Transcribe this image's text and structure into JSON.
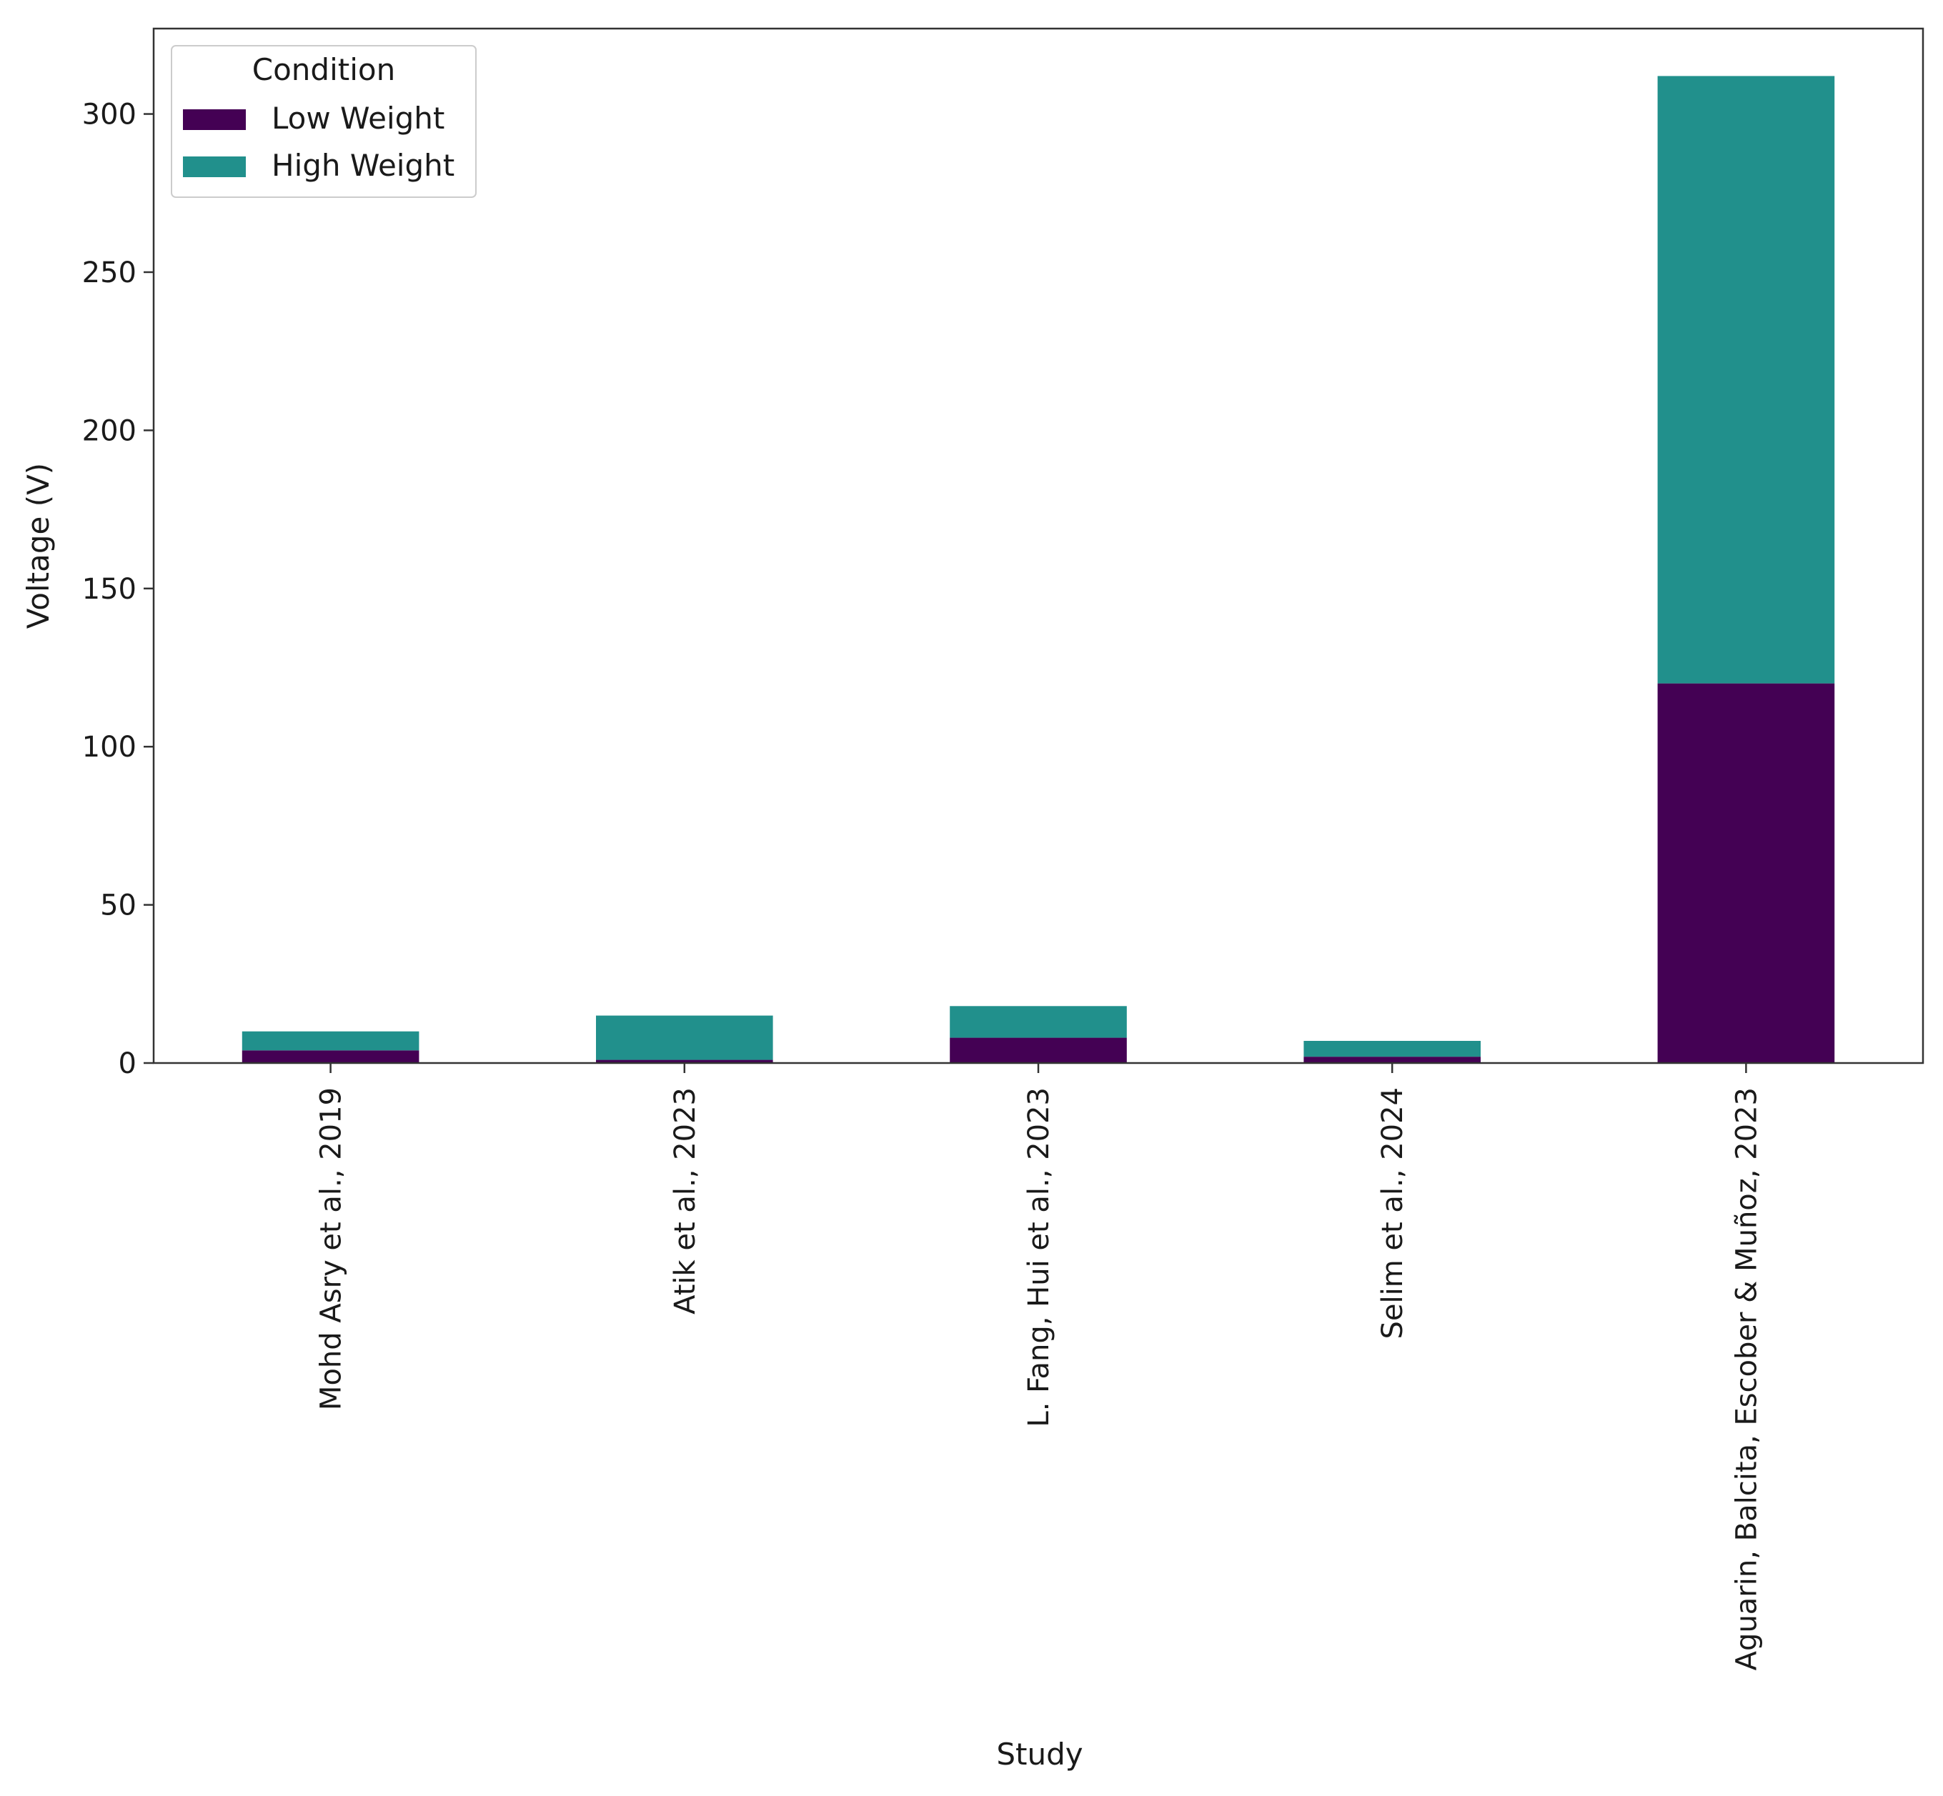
{
  "chart_data": {
    "type": "bar",
    "stacked": true,
    "title": "",
    "xlabel": "Study",
    "ylabel": "Voltage (V)",
    "ylim": [
      0,
      327
    ],
    "yticks": [
      0,
      50,
      100,
      150,
      200,
      250,
      300
    ],
    "grid": false,
    "categories": [
      "Mohd Asry et al., 2019",
      "Atik et al., 2023",
      "L. Fang, Hui et al., 2023",
      "Selim et al., 2024",
      "Aguarin, Balcita, Escober & Muñoz, 2023"
    ],
    "series": [
      {
        "name": "Low Weight",
        "color": "#440154",
        "values": [
          4,
          1,
          8,
          2,
          120
        ]
      },
      {
        "name": "High Weight",
        "color": "#21908c",
        "values": [
          6,
          14,
          10,
          5,
          192
        ]
      }
    ],
    "legend": {
      "title": "Condition",
      "placement": "top-left"
    }
  }
}
